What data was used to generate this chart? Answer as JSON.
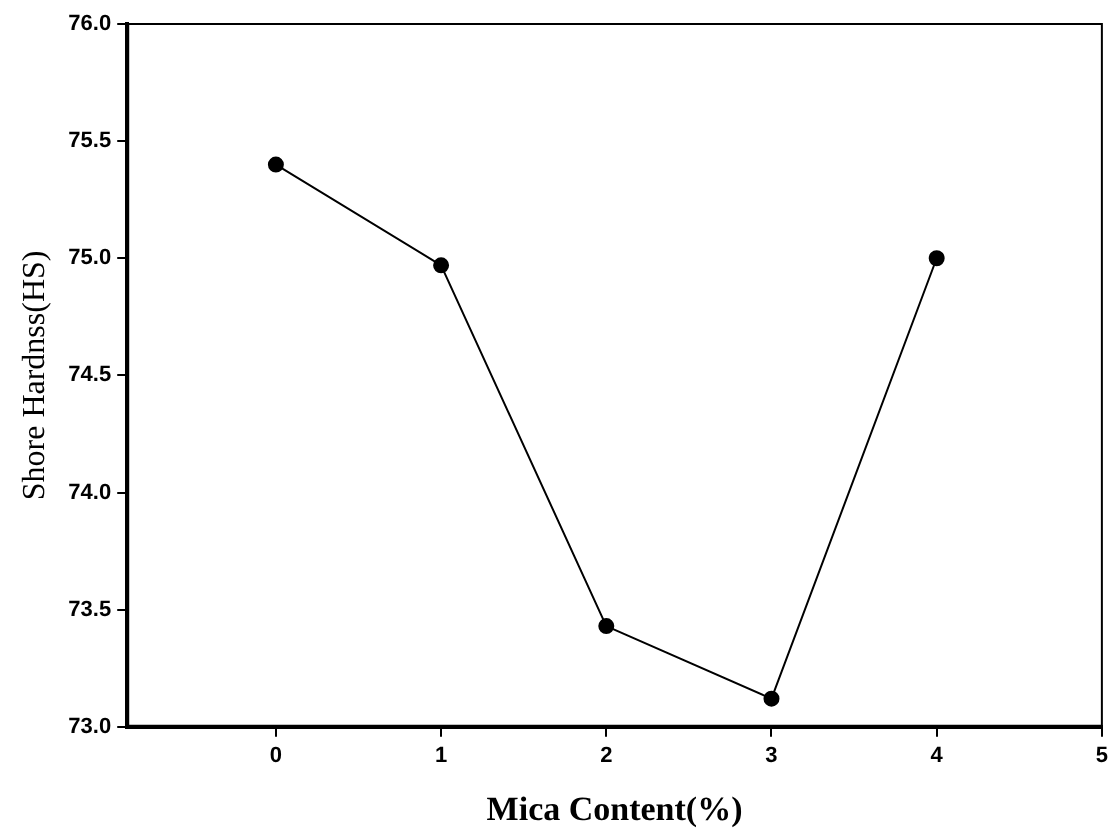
{
  "chart_data": {
    "type": "line",
    "xlabel": "Mica Content(%)",
    "ylabel": "Shore Hardnss(HS)",
    "x": [
      0,
      1,
      2,
      3,
      4
    ],
    "series": [
      {
        "color": "#000000",
        "values": [
          75.4,
          74.97,
          73.43,
          73.12,
          75.0
        ]
      }
    ],
    "xlim": [
      -0.9,
      5
    ],
    "xticks": [
      0,
      1,
      2,
      3,
      4,
      5
    ],
    "ylim": [
      73,
      76
    ],
    "yticks": [
      {
        "value": 73,
        "label": "73.0"
      },
      {
        "value": 73.5,
        "label": "73.5"
      },
      {
        "value": 74,
        "label": "74.0"
      },
      {
        "value": 74.5,
        "label": "74.5"
      },
      {
        "value": 75,
        "label": "75.0"
      },
      {
        "value": 75.5,
        "label": "75.5"
      },
      {
        "value": 76,
        "label": "76.0"
      }
    ],
    "grid": false,
    "legend": false,
    "marker": "circle",
    "line_style": "solid"
  }
}
